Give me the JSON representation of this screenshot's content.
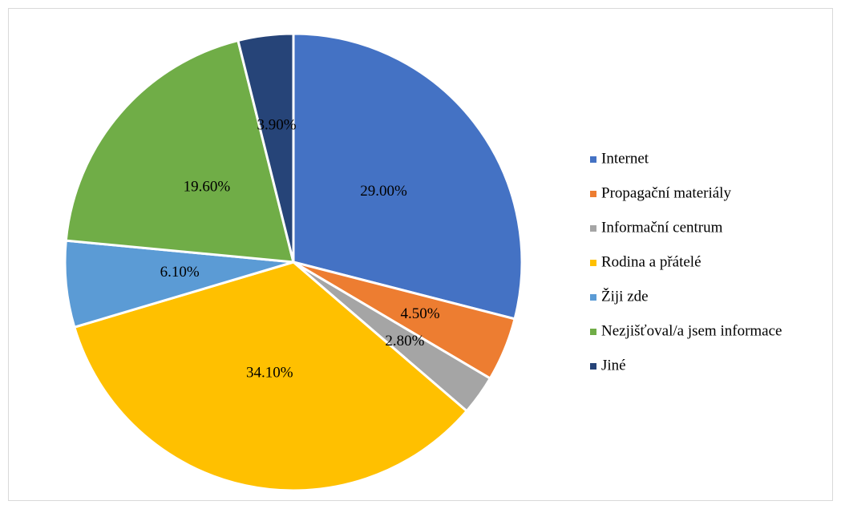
{
  "chart_data": {
    "type": "pie",
    "categories": [
      "Internet",
      "Propagační materiály",
      "Informační centrum",
      "Rodina a přátelé",
      "Žiji zde",
      "Nezjišťoval/a jsem informace",
      "Jiné"
    ],
    "values": [
      29.0,
      4.5,
      2.8,
      34.1,
      6.1,
      19.6,
      3.9
    ],
    "value_labels": [
      "29.00%",
      "4.50%",
      "2.80%",
      "34.10%",
      "6.10%",
      "19.60%",
      "3.90%"
    ],
    "colors": [
      "#4472c4",
      "#ed7d31",
      "#a5a5a5",
      "#ffc000",
      "#5b9bd5",
      "#70ad47",
      "#264478"
    ],
    "legend": "right"
  }
}
